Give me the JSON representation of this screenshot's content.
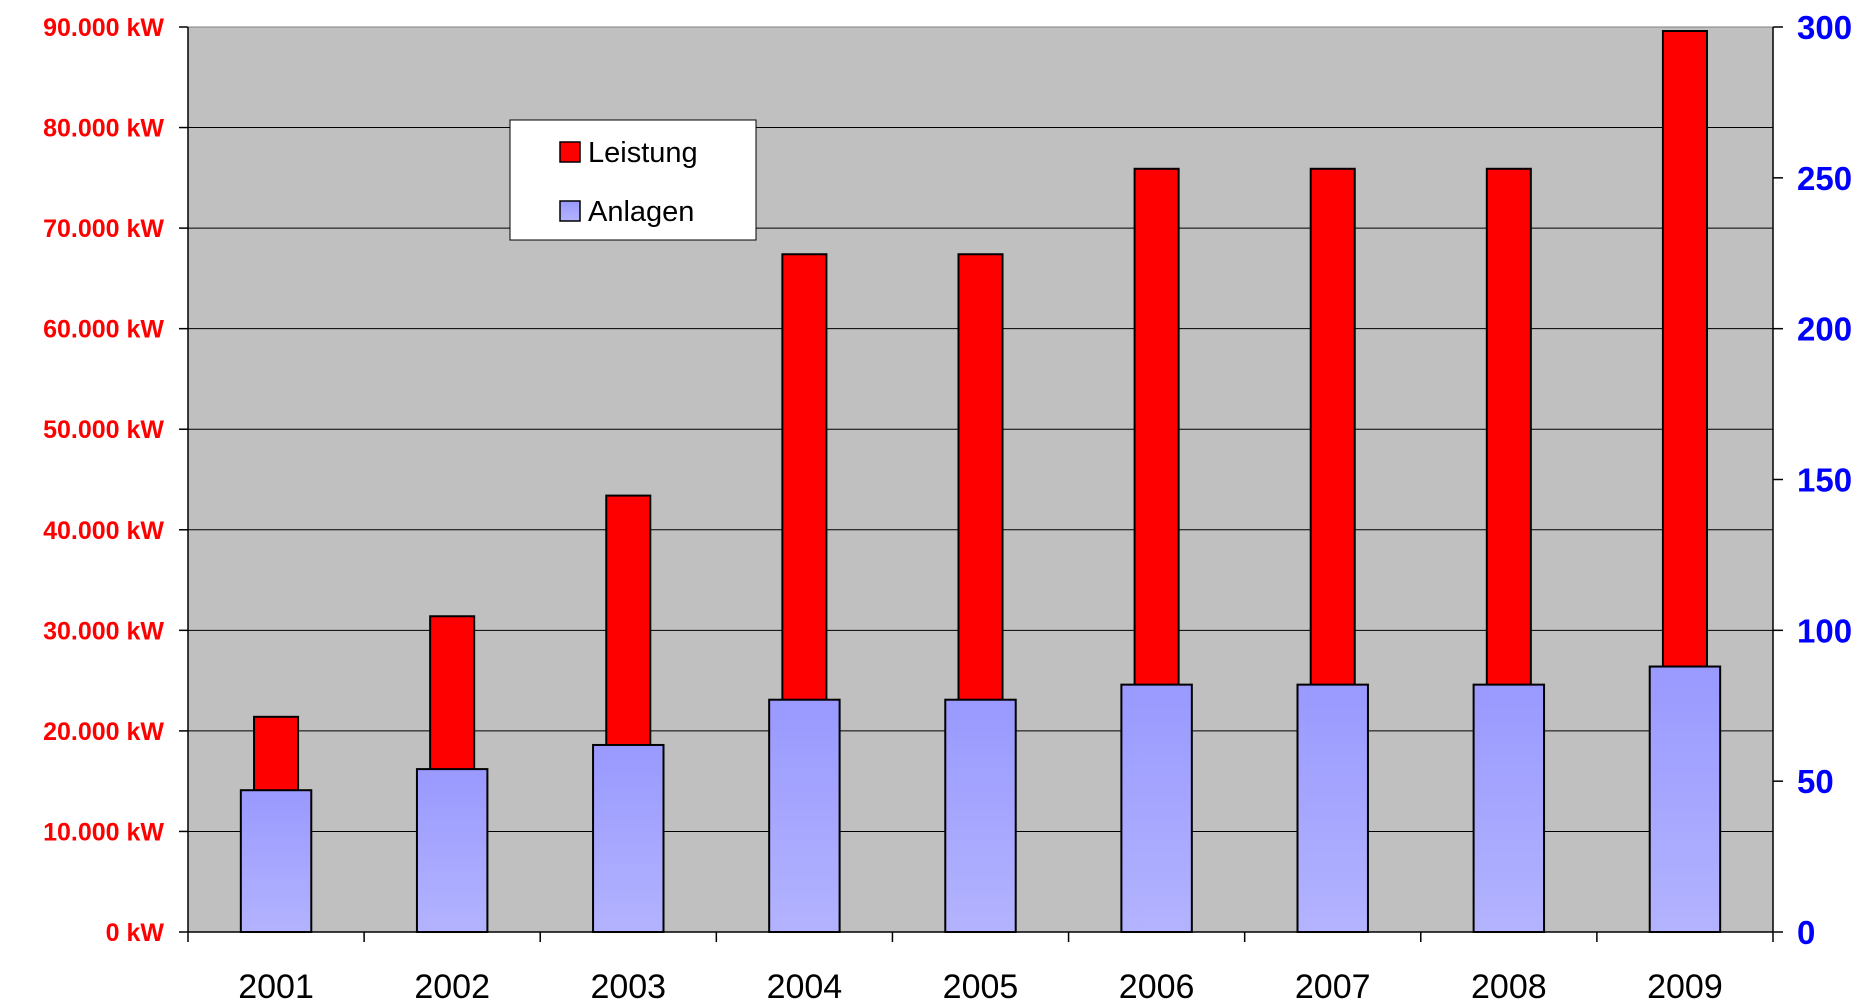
{
  "chart_data": {
    "type": "bar",
    "categories": [
      "2001",
      "2002",
      "2003",
      "2004",
      "2005",
      "2006",
      "2007",
      "2008",
      "2009"
    ],
    "series": [
      {
        "name": "Leistung",
        "axis": "left",
        "values": [
          21400,
          31400,
          43400,
          67400,
          67400,
          75900,
          75900,
          75900,
          89600
        ],
        "color": "#ff0000"
      },
      {
        "name": "Anlagen",
        "axis": "right",
        "values": [
          47,
          54,
          62,
          77,
          77,
          82,
          82,
          82,
          88
        ],
        "color": "#9999ff"
      }
    ],
    "left_axis": {
      "min": 0,
      "max": 90000,
      "ticks": [
        0,
        10000,
        20000,
        30000,
        40000,
        50000,
        60000,
        70000,
        80000,
        90000
      ],
      "tick_labels": [
        "0 kW",
        "10.000 kW",
        "20.000 kW",
        "30.000 kW",
        "40.000 kW",
        "50.000 kW",
        "60.000 kW",
        "70.000 kW",
        "80.000 kW",
        "90.000 kW"
      ],
      "color": "#ff0000"
    },
    "right_axis": {
      "min": 0,
      "max": 300,
      "ticks": [
        0,
        50,
        100,
        150,
        200,
        250,
        300
      ],
      "tick_labels": [
        "0",
        "50",
        "100",
        "150",
        "200",
        "250",
        "300"
      ],
      "color": "#0000ff"
    },
    "title": "",
    "xlabel": "",
    "ylabel": "",
    "grid": true,
    "legend": "top-left",
    "plot_background": "#c0c0c0"
  }
}
